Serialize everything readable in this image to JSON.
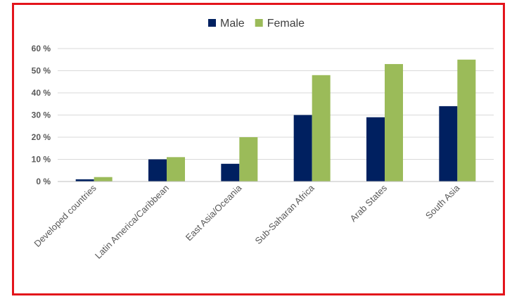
{
  "chart_data": {
    "type": "bar",
    "title": "",
    "xlabel": "",
    "ylabel": "",
    "categories": [
      "Developed countries",
      "Latin America/Caribbean",
      "East Asia/Oceania",
      "Sub-Saharan Africa",
      "Arab States",
      "South Asia"
    ],
    "series": [
      {
        "name": "Male",
        "color": "#002060",
        "values": [
          1,
          10,
          8,
          30,
          29,
          34
        ]
      },
      {
        "name": "Female",
        "color": "#9bbb59",
        "values": [
          2,
          11,
          20,
          48,
          53,
          55
        ]
      }
    ],
    "ylim": [
      0,
      60
    ],
    "yticks": [
      0,
      10,
      20,
      30,
      40,
      50,
      60
    ],
    "ytick_labels": [
      "0 %",
      "10 %",
      "20 %",
      "30 %",
      "40 %",
      "50 %",
      "60 %"
    ],
    "grid": true,
    "legend_position": "top-center",
    "frame_color": "#e3141b"
  }
}
